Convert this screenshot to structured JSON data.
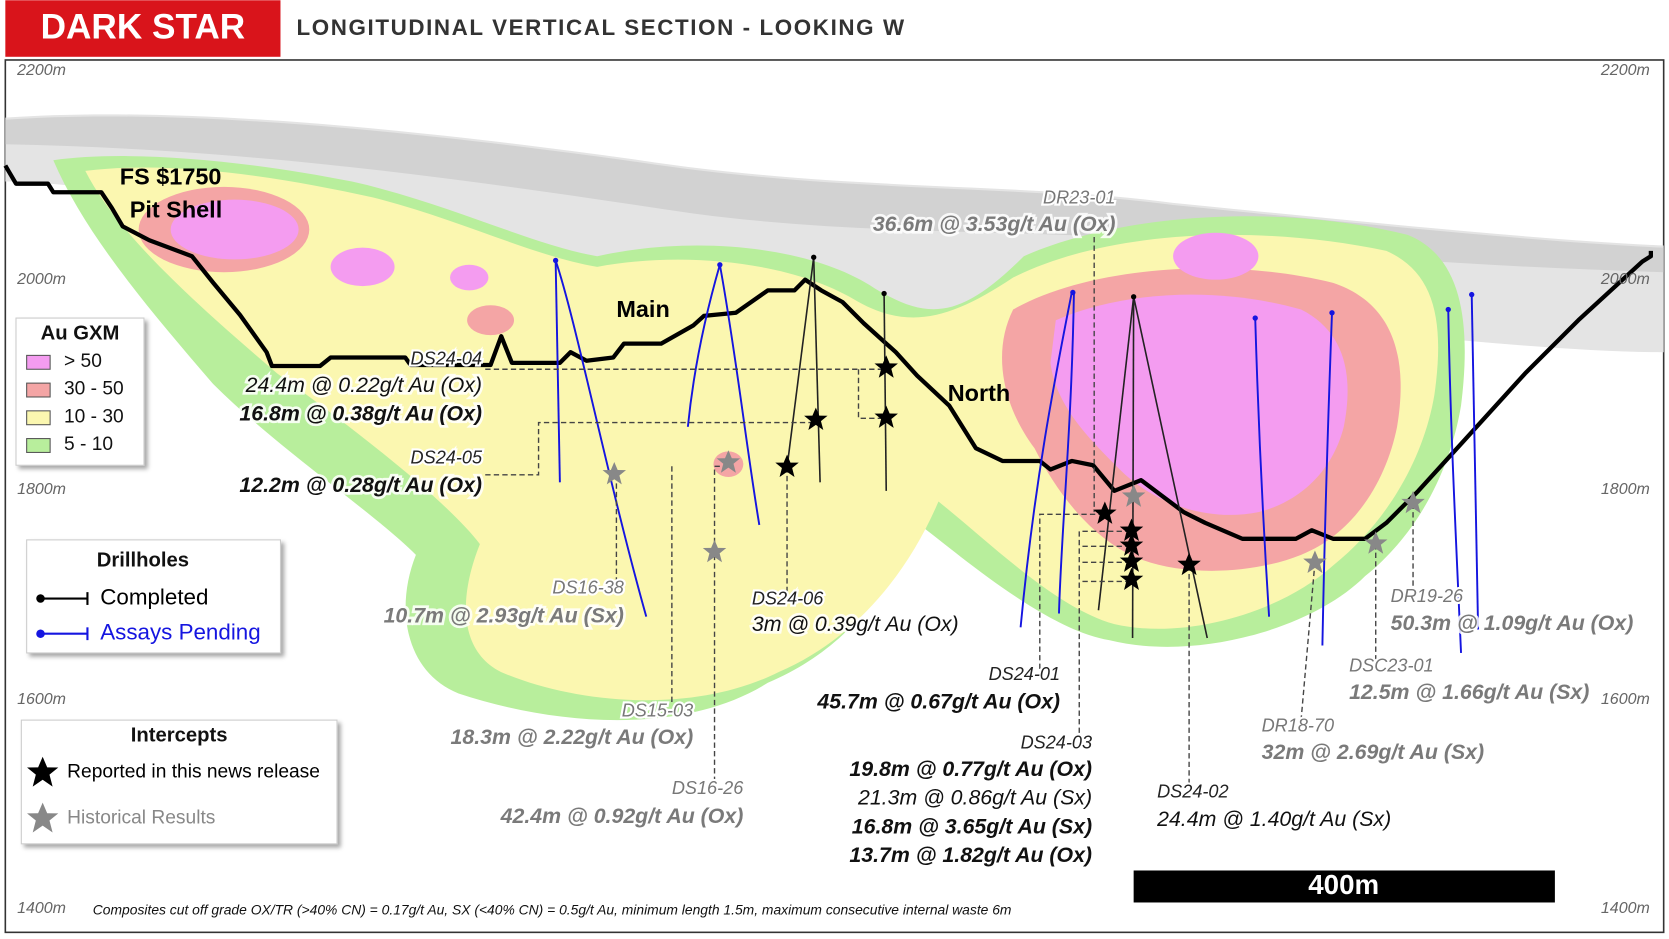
{
  "header": {
    "logo": "DARK STAR",
    "title": "LONGITUDINAL VERTICAL SECTION - LOOKING W"
  },
  "elevations": [
    "2200m",
    "2000m",
    "1800m",
    "1600m",
    "1400m"
  ],
  "pit_shell": [
    "FS $1750",
    "Pit Shell"
  ],
  "zones": [
    "Main",
    "North"
  ],
  "legend_gxm": {
    "title": "Au GXM",
    "items": [
      {
        "label": "> 50",
        "color": "#f49cf0"
      },
      {
        "label": "30 - 50",
        "color": "#f4a5a5"
      },
      {
        "label": "10 - 30",
        "color": "#fbf7b0"
      },
      {
        "label": "5 - 10",
        "color": "#b8ee9c"
      }
    ]
  },
  "legend_drillholes": {
    "title": "Drillholes",
    "items": [
      {
        "label": "Completed",
        "color": "#000000"
      },
      {
        "label": "Assays Pending",
        "color": "#1515e0"
      }
    ]
  },
  "legend_intercepts": {
    "title": "Intercepts",
    "items": [
      {
        "label": "Reported in this news release",
        "color": "#000000"
      },
      {
        "label": "Historical Results",
        "color": "#888888"
      }
    ]
  },
  "holes": [
    {
      "id": "DS24-04",
      "intercepts": [
        {
          "text": "24.4m @ 0.22g/t Au (Ox)",
          "style": "normal"
        },
        {
          "text": "16.8m @ 0.38g/t Au (Ox)",
          "style": "bold"
        }
      ]
    },
    {
      "id": "DS24-05",
      "intercepts": [
        {
          "text": "12.2m @ 0.28g/t Au (Ox)",
          "style": "bold"
        }
      ]
    },
    {
      "id": "DS16-38",
      "intercepts": [
        {
          "text": "10.7m @ 2.93g/t Au (Sx)",
          "style": "historical"
        }
      ]
    },
    {
      "id": "DS24-06",
      "intercepts": [
        {
          "text": "3m @ 0.39g/t Au (Ox)",
          "style": "normal"
        }
      ]
    },
    {
      "id": "DR23-01",
      "intercepts": [
        {
          "text": "36.6m @ 3.53g/t Au (Ox)",
          "style": "historical"
        }
      ]
    },
    {
      "id": "DS15-03",
      "intercepts": [
        {
          "text": "18.3m @ 2.22g/t Au (Ox)",
          "style": "historical"
        }
      ]
    },
    {
      "id": "DS16-26",
      "intercepts": [
        {
          "text": "42.4m @ 0.92g/t Au (Ox)",
          "style": "historical"
        }
      ]
    },
    {
      "id": "DS24-01",
      "intercepts": [
        {
          "text": "45.7m @ 0.67g/t Au (Ox)",
          "style": "bold"
        }
      ]
    },
    {
      "id": "DS24-03",
      "intercepts": [
        {
          "text": "19.8m @ 0.77g/t Au (Ox)",
          "style": "bold"
        },
        {
          "text": "21.3m @ 0.86g/t Au (Sx)",
          "style": "normal"
        },
        {
          "text": "16.8m @ 3.65g/t Au (Sx)",
          "style": "bold"
        },
        {
          "text": "13.7m @ 1.82g/t Au (Ox)",
          "style": "bold"
        }
      ]
    },
    {
      "id": "DS24-02",
      "intercepts": [
        {
          "text": "24.4m @ 1.40g/t Au (Sx)",
          "style": "normal"
        }
      ]
    },
    {
      "id": "DR18-70",
      "intercepts": [
        {
          "text": "32m @ 2.69g/t Au (Sx)",
          "style": "historical"
        }
      ]
    },
    {
      "id": "DSC23-01",
      "intercepts": [
        {
          "text": "12.5m @ 1.66g/t Au (Sx)",
          "style": "historical"
        }
      ]
    },
    {
      "id": "DR19-26",
      "intercepts": [
        {
          "text": "50.3m @ 1.09g/t Au (Ox)",
          "style": "historical"
        }
      ]
    }
  ],
  "scale_bar": "400m",
  "footnote": "Composites cut off grade OX/TR (>40% CN) = 0.17g/t Au, SX (<40% CN) = 0.5g/t Au, minimum length 1.5m, maximum consecutive internal waste 6m"
}
